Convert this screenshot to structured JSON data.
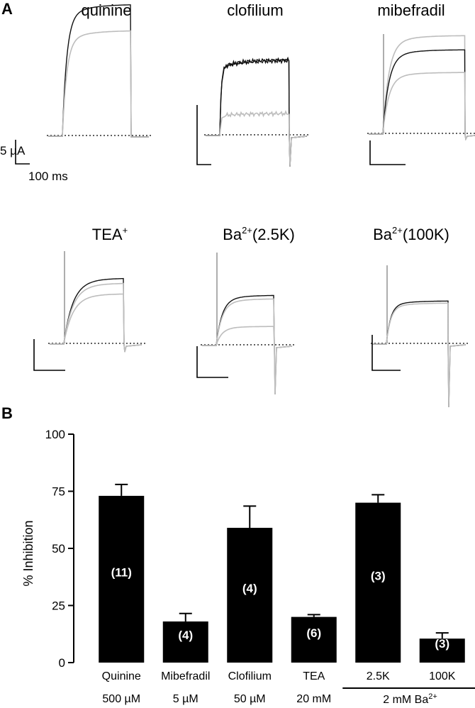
{
  "panel_a": {
    "label": "A",
    "scale_bar": {
      "current": "5 µA",
      "time": "100 ms"
    },
    "traces": [
      {
        "title": "quinine"
      },
      {
        "title": "clofilium"
      },
      {
        "title": "mibefradil"
      },
      {
        "title": "TEA",
        "title_sup": "+"
      },
      {
        "title": "Ba",
        "title_sup": "2+",
        "title_suffix": "(2.5K)"
      },
      {
        "title": "Ba",
        "title_sup": "2+",
        "title_suffix": "(100K)"
      }
    ],
    "colors": {
      "control": "#111111",
      "drug": "#bdbdbd"
    }
  },
  "panel_b": {
    "label": "B"
  },
  "chart_data": {
    "type": "bar",
    "title": "",
    "ylabel": "% Inhibition",
    "ylim": [
      0,
      100
    ],
    "yticks": [
      0,
      25,
      50,
      75,
      100
    ],
    "categories": [
      "Quinine",
      "Mibefradil",
      "Clofilium",
      "TEA",
      "2.5K",
      "100K"
    ],
    "concentrations": [
      "500 µM",
      "5 µM",
      "50 µM",
      "20 mM",
      "",
      ""
    ],
    "group_label": {
      "text": "2 mM Ba",
      "sup": "2+",
      "spans": [
        "2.5K",
        "100K"
      ]
    },
    "values": [
      73,
      18,
      59,
      20,
      70,
      10.5
    ],
    "errors": [
      5,
      3.5,
      9.5,
      1,
      3.5,
      2.5
    ],
    "n_labels": [
      "(11)",
      "(4)",
      "(4)",
      "(6)",
      "(3)",
      "(3)"
    ],
    "bar_color": "#000000"
  }
}
